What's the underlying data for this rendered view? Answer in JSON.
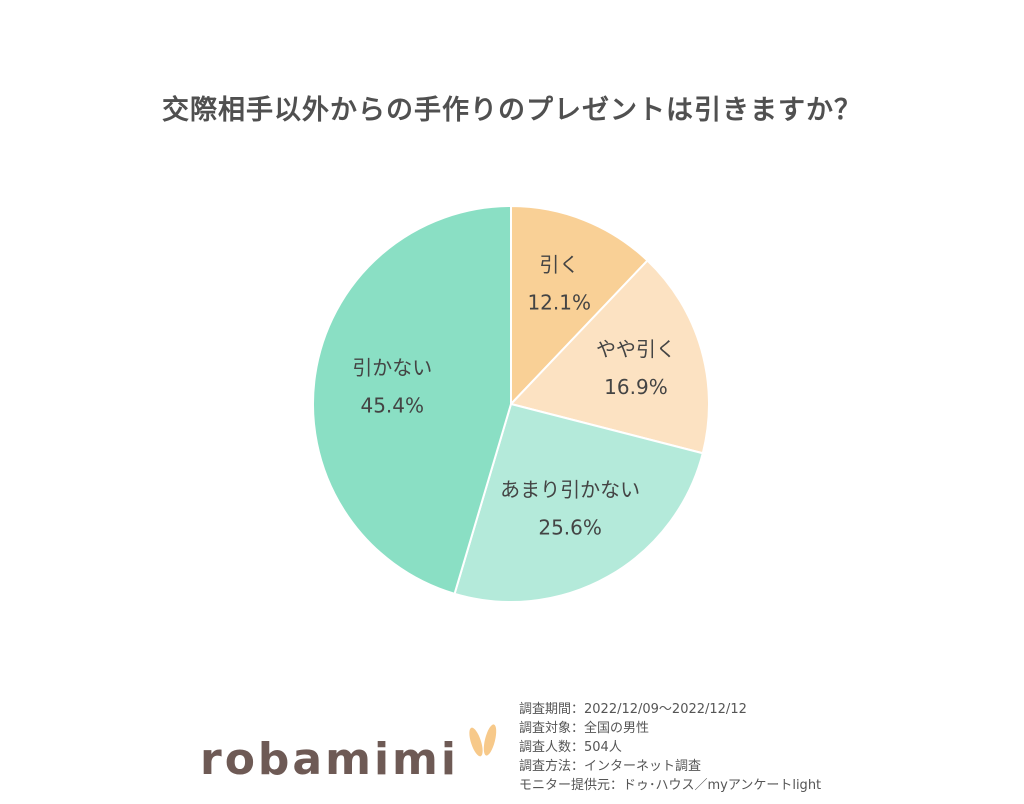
{
  "title": "交際相手以外からの手作りのプレゼントは引きますか？",
  "chart_data": {
    "type": "pie",
    "start_angle_deg": 0,
    "direction": "clockwise",
    "slices": [
      {
        "label": "引く",
        "value": 12.1,
        "display": "12.1%",
        "color": "#f9d096"
      },
      {
        "label": "やや引く",
        "value": 16.9,
        "display": "16.9%",
        "color": "#fce2c2"
      },
      {
        "label": "あまり引かない",
        "value": 25.6,
        "display": "25.6%",
        "color": "#b4eada"
      },
      {
        "label": "引かない",
        "value": 45.4,
        "display": "45.4%",
        "color": "#8adfc4"
      }
    ]
  },
  "logo": {
    "text": "robamimi",
    "ear_color": "#f7c98a"
  },
  "survey": {
    "period": "調査期間：2022/12/09～2022/12/12",
    "target": "調査対象：全国の男性",
    "count": "調査人数：504人",
    "method": "調査方法：インターネット調査",
    "provider": "モニター提供元：ドゥ･ハウス／myアンケートlight"
  }
}
